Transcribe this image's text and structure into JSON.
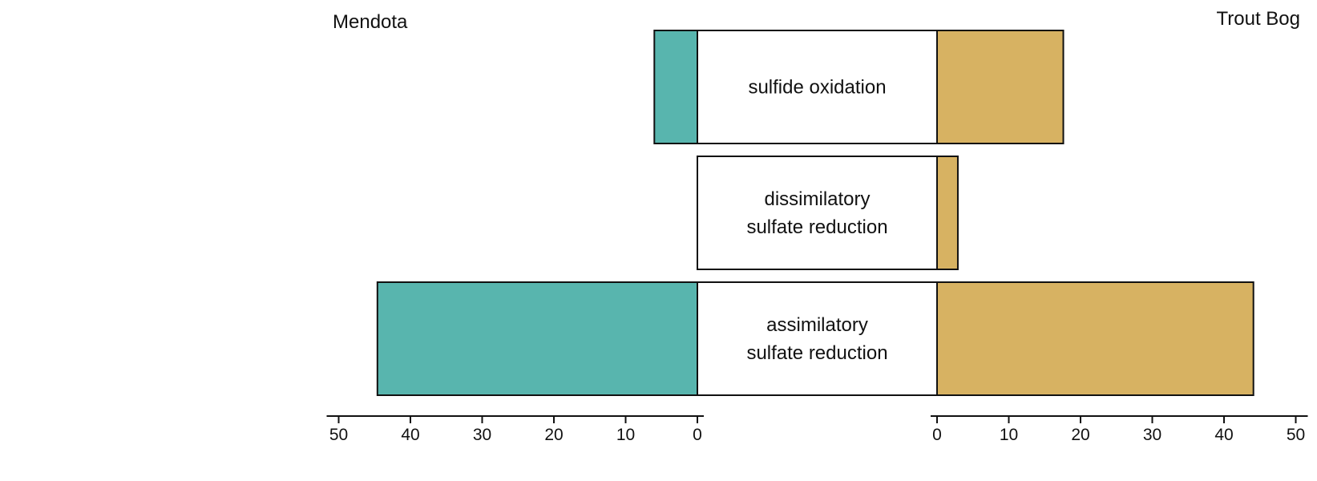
{
  "chart_data": {
    "type": "bar",
    "orientation": "horizontal",
    "layout": "mirrored",
    "categories": [
      "sulfide oxidation",
      "dissimilatory sulfate reduction",
      "assimilatory sulfate reduction"
    ],
    "category_lines": [
      [
        "sulfide oxidation"
      ],
      [
        "dissimilatory",
        "sulfate reduction"
      ],
      [
        "assimilatory",
        "sulfate reduction"
      ]
    ],
    "series": [
      {
        "name": "Mendota",
        "side": "left",
        "color": "#58b5ae",
        "values": [
          6,
          0,
          44.6
        ]
      },
      {
        "name": "Trout Bog",
        "side": "right",
        "color": "#d7b262",
        "values": [
          17.6,
          2.9,
          44.1
        ]
      }
    ],
    "xlim": [
      0,
      50
    ],
    "ticks": [
      0,
      10,
      20,
      30,
      40,
      50
    ],
    "tick_labels": [
      "0",
      "10",
      "20",
      "30",
      "40",
      "50"
    ],
    "grid": false
  }
}
